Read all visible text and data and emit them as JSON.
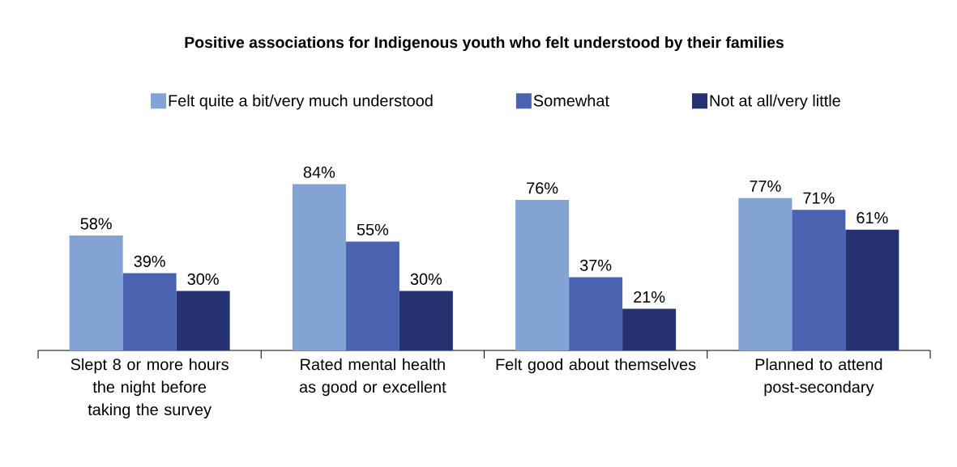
{
  "chart_data": {
    "type": "bar",
    "title": "Positive associations for Indigenous youth who felt understood by their families",
    "categories": [
      "Slept 8 or more hours the night before taking the survey",
      "Rated mental health as good or excellent",
      "Felt good about themselves",
      "Planned to attend post-secondary"
    ],
    "series": [
      {
        "name": "Felt quite a bit/very much understood",
        "color": "#82a3d4",
        "values": [
          58,
          84,
          76,
          77
        ],
        "value_labels": [
          "58%",
          "84%",
          "76%",
          "77%"
        ]
      },
      {
        "name": "Somewhat",
        "color": "#4a62b0",
        "values": [
          39,
          55,
          37,
          71
        ],
        "value_labels": [
          "39%",
          "55%",
          "37%",
          "71%"
        ]
      },
      {
        "name": "Not at all/very little",
        "color": "#253170",
        "values": [
          30,
          30,
          21,
          61
        ],
        "value_labels": [
          "30%",
          "30%",
          "21%",
          "61%"
        ]
      }
    ],
    "legend": "top"
  }
}
